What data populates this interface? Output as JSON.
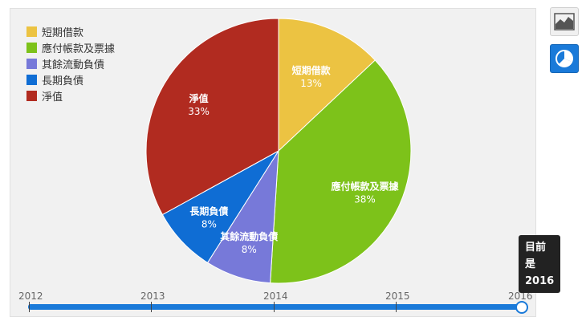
{
  "chart_data": {
    "type": "pie",
    "categories": [
      "短期借款",
      "應付帳款及票據",
      "其餘流動負債",
      "長期負債",
      "淨值"
    ],
    "values": [
      13,
      38,
      8,
      8,
      33
    ],
    "value_labels": [
      "13%",
      "38%",
      "8%",
      "8%",
      "33%"
    ],
    "colors": [
      "#ecc342",
      "#7dc21a",
      "#7779d9",
      "#0f6dd4",
      "#b12b20"
    ],
    "legend_placement": "top-left"
  },
  "legend": {
    "items": [
      {
        "label": "短期借款",
        "color": "#ecc342"
      },
      {
        "label": "應付帳款及票據",
        "color": "#7dc21a"
      },
      {
        "label": "其餘流動負債",
        "color": "#7779d9"
      },
      {
        "label": "長期負債",
        "color": "#0f6dd4"
      },
      {
        "label": "淨值",
        "color": "#b12b20"
      }
    ]
  },
  "view_buttons": {
    "area": {
      "icon": "area-chart-icon"
    },
    "pie": {
      "icon": "pie-chart-icon",
      "active": true
    }
  },
  "timeline": {
    "years": [
      "2012",
      "2013",
      "2014",
      "2015",
      "2016"
    ],
    "selected_year": "2016",
    "accent": "#1a7ad9"
  },
  "tooltip": {
    "line1": "目前",
    "line2": "是",
    "line3": "2016"
  }
}
